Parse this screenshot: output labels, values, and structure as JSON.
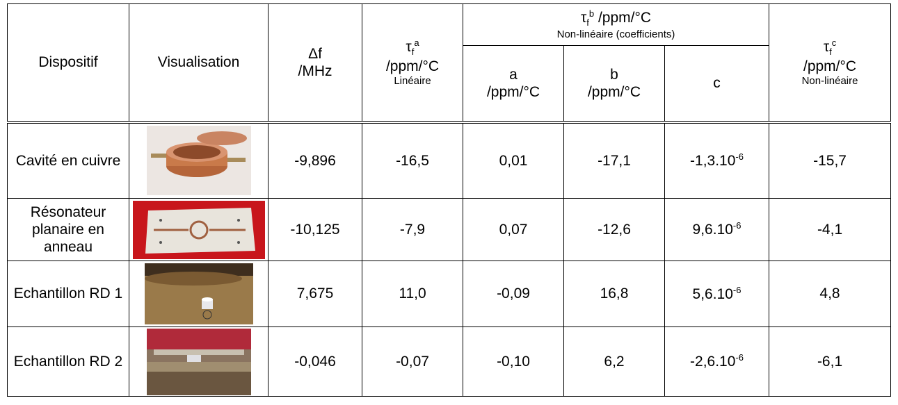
{
  "table": {
    "headers": {
      "dispositif": "Dispositif",
      "visualisation": "Visualisation",
      "delta_f": {
        "symbol": "Δf",
        "unit": "/MHz"
      },
      "tau_a": {
        "symbol": "τ",
        "sub": "f",
        "sup": "a",
        "unit": "/ppm/°C",
        "note": "Linéaire"
      },
      "tau_b": {
        "symbol": "τ",
        "sub": "f",
        "sup": "b",
        "unit": "/ppm/°C",
        "note": "Non-linéaire (coefficients)"
      },
      "a": {
        "name": "a",
        "unit": "/ppm/°C"
      },
      "b": {
        "name": "b",
        "unit": "/ppm/°C"
      },
      "c": {
        "name": "c"
      },
      "tau_c": {
        "symbol": "τ",
        "sub": "f",
        "sup": "c",
        "unit": "/ppm/°C",
        "note": "Non-linéaire"
      }
    },
    "rows": [
      {
        "device": "Cavité en cuivre",
        "delta_f": "-9,896",
        "tau_a": "-16,5",
        "a": "0,01",
        "b": "-17,1",
        "c": {
          "base": "-1,3.10",
          "exp": "-6"
        },
        "tau_c": "-15,7"
      },
      {
        "device": "Résonateur planaire en anneau",
        "delta_f": "-10,125",
        "tau_a": "-7,9",
        "a": "0,07",
        "b": "-12,6",
        "c": {
          "base": "9,6.10",
          "exp": "-6"
        },
        "tau_c": "-4,1"
      },
      {
        "device": "Echantillon RD 1",
        "delta_f": "7,675",
        "tau_a": "11,0",
        "a": "-0,09",
        "b": "16,8",
        "c": {
          "base": "5,6.10",
          "exp": "-6"
        },
        "tau_c": "4,8"
      },
      {
        "device": "Echantillon RD 2",
        "delta_f": "-0,046",
        "tau_a": "-0,07",
        "a": "-0,10",
        "b": "6,2",
        "c": {
          "base": "-2,6.10",
          "exp": "-6"
        },
        "tau_c": "-6,1"
      }
    ]
  }
}
